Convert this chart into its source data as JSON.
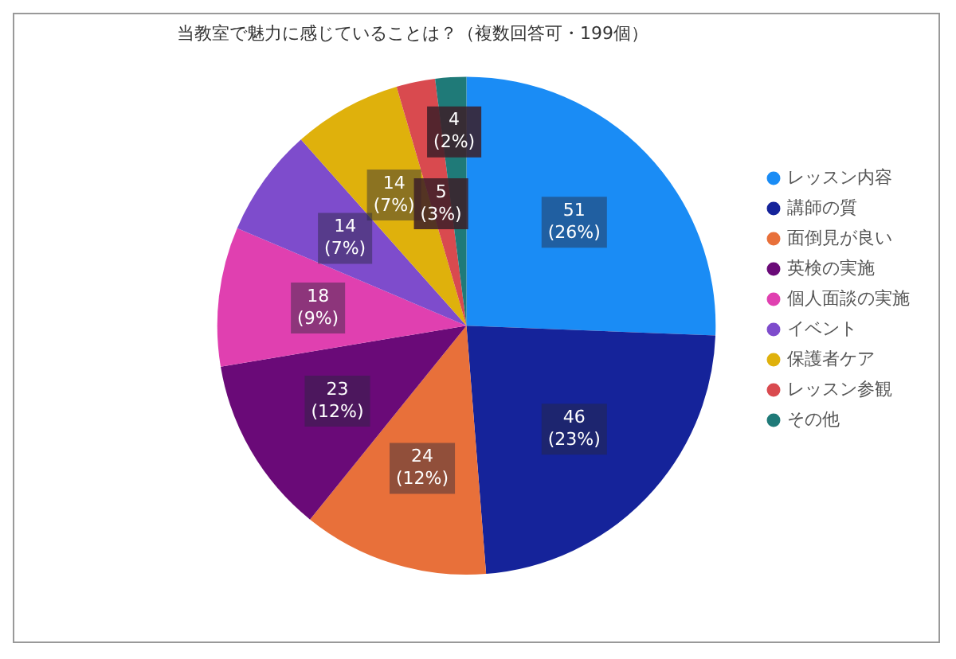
{
  "chart_data": {
    "type": "pie",
    "title": "当教室で魅力に感じていることは？（複数回答可・199個）",
    "categories": [
      "レッスン内容",
      "講師の質",
      "面倒見が良い",
      "英検の実施",
      "個人面談の実施",
      "イベント",
      "保護者ケア",
      "レッスン参観",
      "その他"
    ],
    "values": [
      51,
      46,
      24,
      23,
      18,
      14,
      14,
      5,
      4
    ],
    "colors": [
      "#1a8cf5",
      "#15239a",
      "#e8703a",
      "#6a0a78",
      "#e040b0",
      "#7e4ccc",
      "#dfb10c",
      "#d94a4f",
      "#1f7a78"
    ],
    "value_labels": [
      "51\n(26%)",
      "46\n(23%)",
      "24\n(12%)",
      "23\n(12%)",
      "18\n(9%)",
      "14\n(7%)",
      "14\n(7%)",
      "5\n(3%)",
      "4\n(2%)"
    ],
    "legend": "right"
  }
}
